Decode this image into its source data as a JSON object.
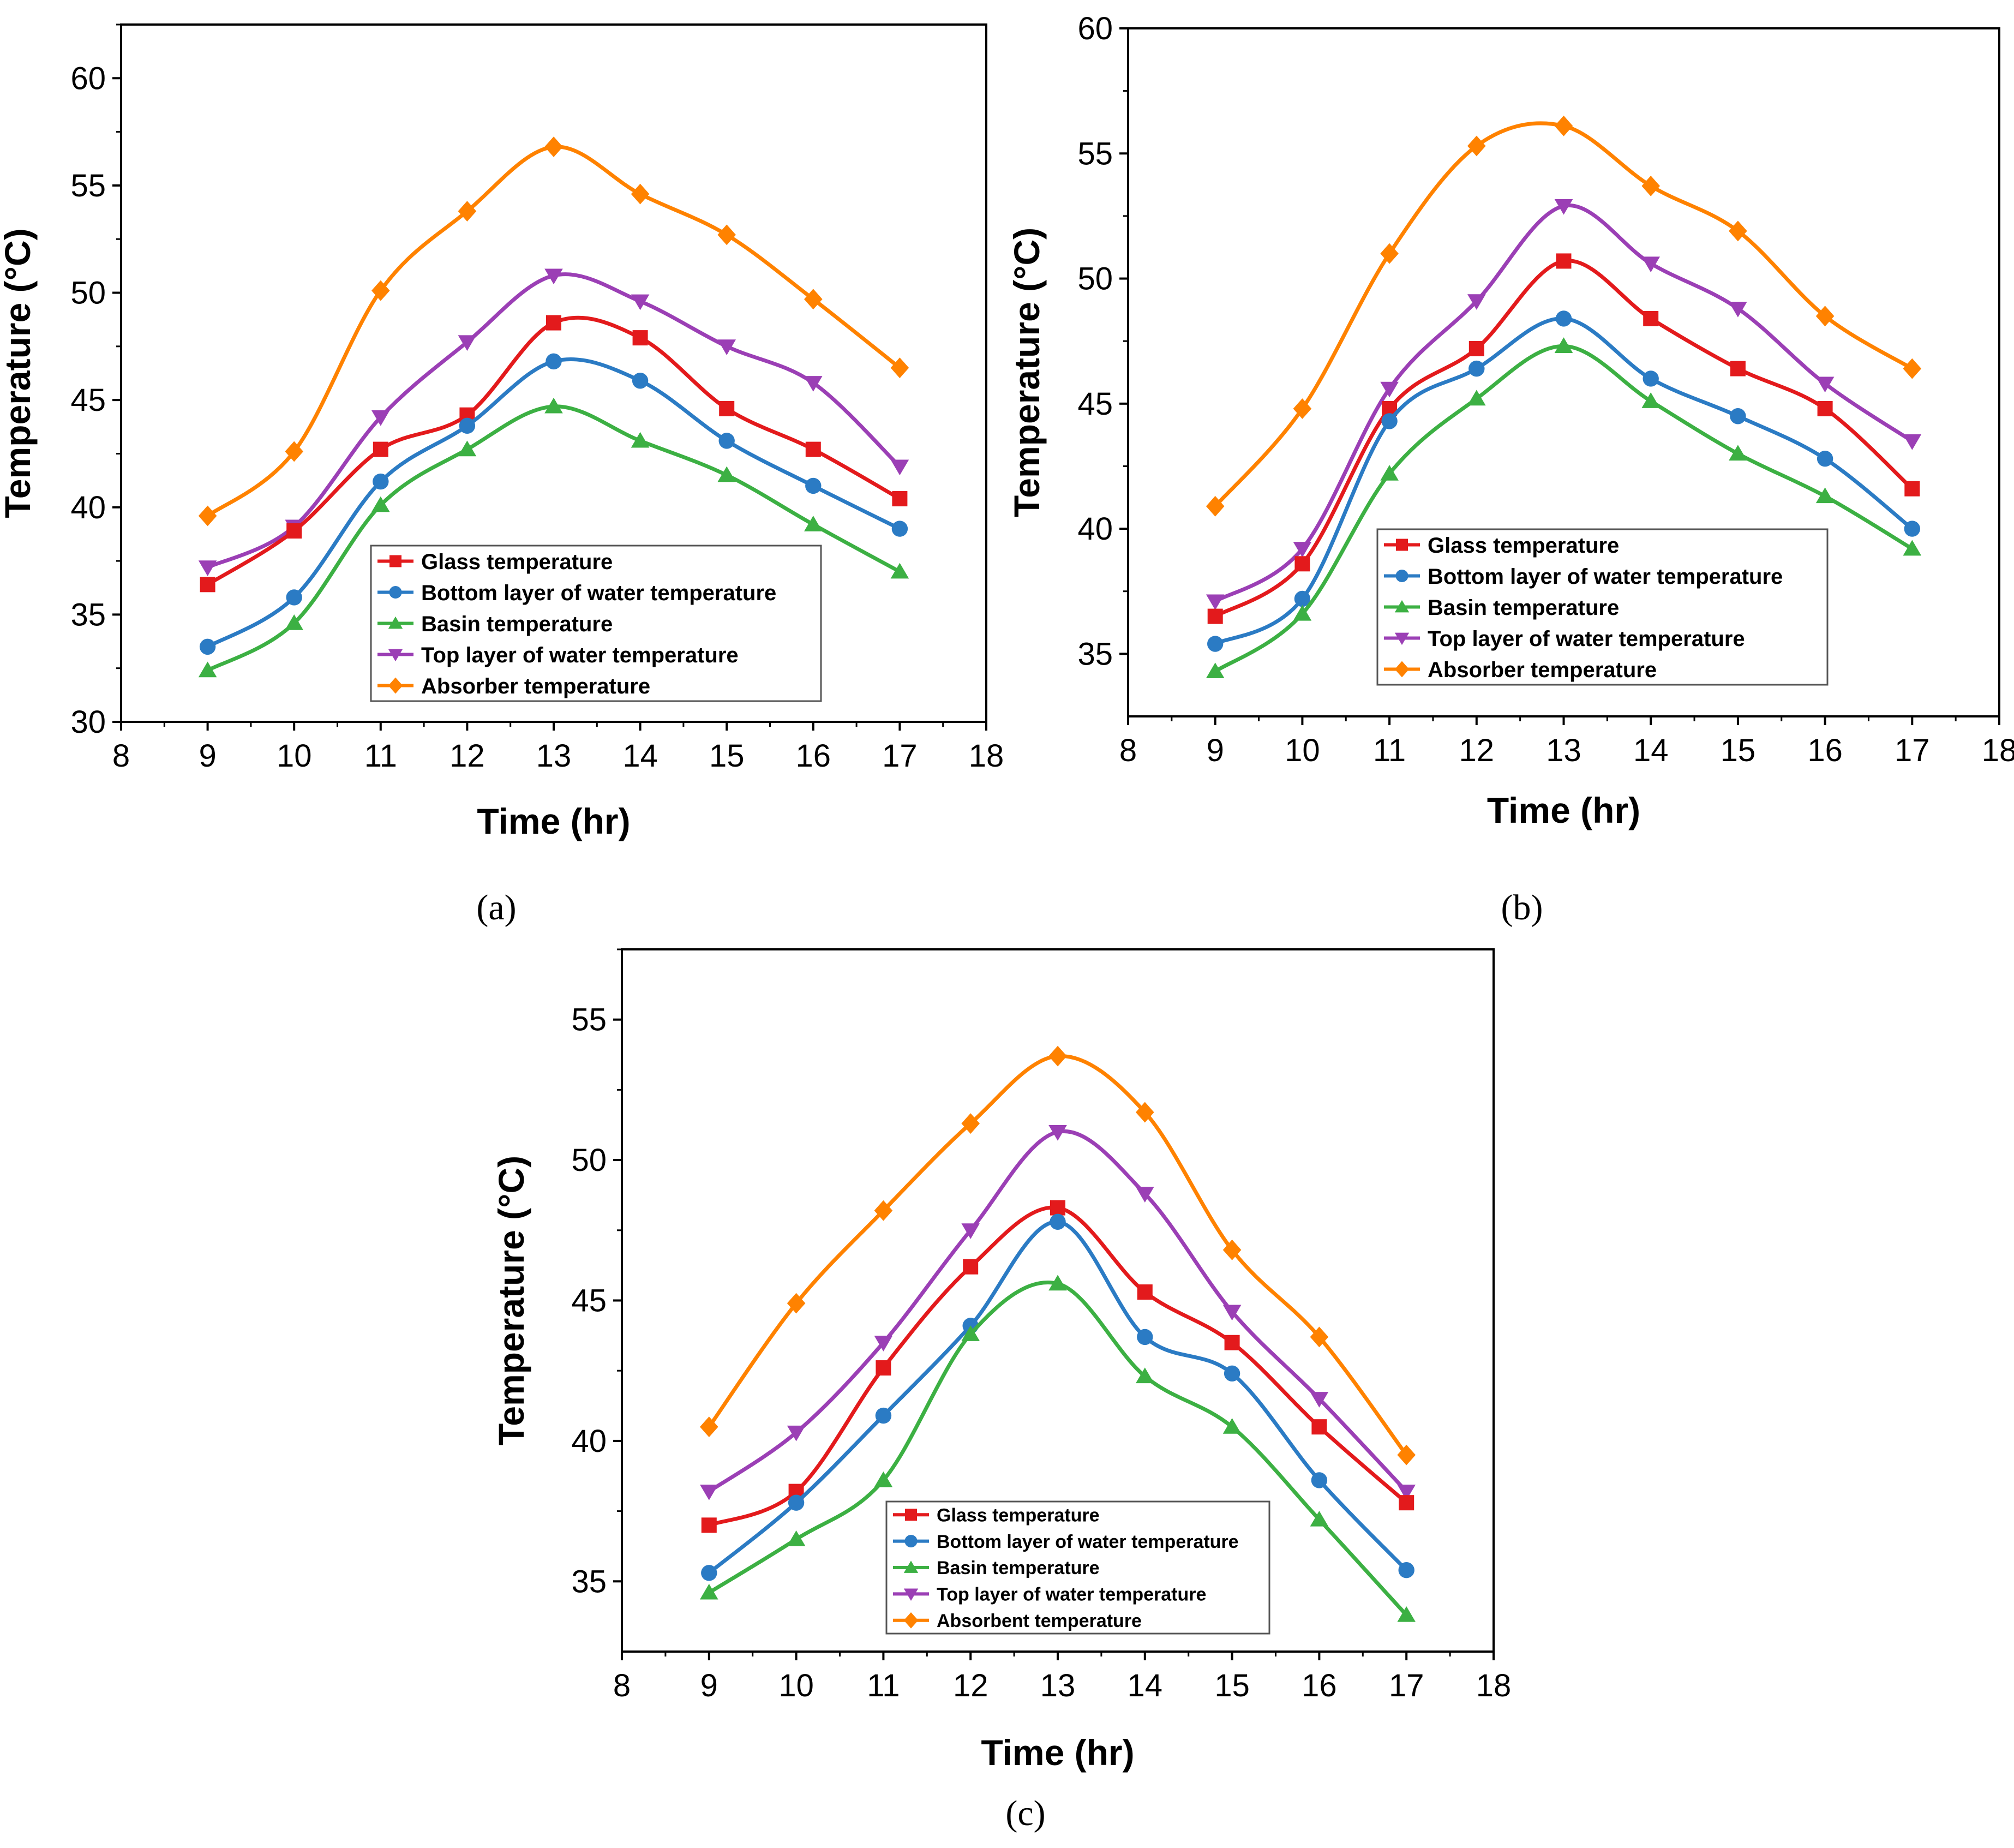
{
  "series_styles": [
    {
      "color": "#e31a1c",
      "marker": "square"
    },
    {
      "color": "#2b7bc4",
      "marker": "circle"
    },
    {
      "color": "#3cb043",
      "marker": "triangle-up"
    },
    {
      "color": "#9b3fb5",
      "marker": "triangle-down"
    },
    {
      "color": "#ff8200",
      "marker": "diamond"
    }
  ],
  "chart_data": [
    {
      "type": "line",
      "panel_label": "(a)",
      "xlabel": "Time (hr)",
      "ylabel": "Temperature (°C)",
      "xlim": [
        8,
        18
      ],
      "ylim": [
        30,
        62.5
      ],
      "xticks": [
        8,
        9,
        10,
        11,
        12,
        13,
        14,
        15,
        16,
        17,
        18
      ],
      "yticks": [
        30,
        35,
        40,
        45,
        50,
        55,
        60
      ],
      "legend_position": "lower-center",
      "x": [
        9,
        10,
        11,
        12,
        13,
        14,
        15,
        16,
        17
      ],
      "series": [
        {
          "name": "Glass temperature",
          "values": [
            36.4,
            38.9,
            42.7,
            44.3,
            48.6,
            47.9,
            44.6,
            42.7,
            40.4
          ]
        },
        {
          "name": "Bottom layer of water temperature",
          "values": [
            33.5,
            35.8,
            41.2,
            43.8,
            46.8,
            45.9,
            43.1,
            41.0,
            39.0
          ]
        },
        {
          "name": "Basin temperature",
          "values": [
            32.4,
            34.6,
            40.1,
            42.7,
            44.7,
            43.1,
            41.5,
            39.2,
            37.0
          ]
        },
        {
          "name": "Top layer of water temperature",
          "values": [
            37.2,
            39.1,
            44.2,
            47.7,
            50.8,
            49.6,
            47.5,
            45.8,
            41.9
          ]
        },
        {
          "name": "Absorber temperature",
          "values": [
            39.6,
            42.6,
            50.1,
            53.8,
            56.8,
            54.6,
            52.7,
            49.7,
            46.5
          ]
        }
      ]
    },
    {
      "type": "line",
      "panel_label": "(b)",
      "xlabel": "Time (hr)",
      "ylabel": "Temperature (°C)",
      "xlim": [
        8,
        18
      ],
      "ylim": [
        32.5,
        60
      ],
      "xticks": [
        8,
        9,
        10,
        11,
        12,
        13,
        14,
        15,
        16,
        17,
        18
      ],
      "yticks": [
        35,
        40,
        45,
        50,
        55,
        60
      ],
      "legend_position": "lower-center",
      "x": [
        9,
        10,
        11,
        12,
        13,
        14,
        15,
        16,
        17
      ],
      "series": [
        {
          "name": "Glass temperature",
          "values": [
            36.5,
            38.6,
            44.8,
            47.2,
            50.7,
            48.4,
            46.4,
            44.8,
            41.6
          ]
        },
        {
          "name": "Bottom layer of water temperature",
          "values": [
            35.4,
            37.2,
            44.3,
            46.4,
            48.4,
            46.0,
            44.5,
            42.8,
            40.0
          ]
        },
        {
          "name": "Basin temperature",
          "values": [
            34.3,
            36.6,
            42.2,
            45.2,
            47.3,
            45.1,
            43.0,
            41.3,
            39.2
          ]
        },
        {
          "name": "Top layer of water temperature",
          "values": [
            37.1,
            39.2,
            45.6,
            49.1,
            52.9,
            50.6,
            48.8,
            45.8,
            43.5
          ]
        },
        {
          "name": "Absorber temperature",
          "values": [
            40.9,
            44.8,
            51.0,
            55.3,
            56.1,
            53.7,
            51.9,
            48.5,
            46.4
          ]
        }
      ]
    },
    {
      "type": "line",
      "panel_label": "(c)",
      "xlabel": "Time (hr)",
      "ylabel": "Temperature (°C)",
      "xlim": [
        8,
        18
      ],
      "ylim": [
        32.5,
        57.5
      ],
      "xticks": [
        8,
        9,
        10,
        11,
        12,
        13,
        14,
        15,
        16,
        17,
        18
      ],
      "yticks": [
        35,
        40,
        45,
        50,
        55
      ],
      "legend_position": "lower-center",
      "x": [
        9,
        10,
        11,
        12,
        13,
        14,
        15,
        16,
        17
      ],
      "series": [
        {
          "name": "Glass temperature",
          "values": [
            37.0,
            38.2,
            42.6,
            46.2,
            48.3,
            45.3,
            43.5,
            40.5,
            37.8
          ]
        },
        {
          "name": "Bottom layer of water temperature",
          "values": [
            35.3,
            37.8,
            40.9,
            44.1,
            47.8,
            43.7,
            42.4,
            38.6,
            35.4
          ]
        },
        {
          "name": "Basin temperature",
          "values": [
            34.6,
            36.5,
            38.6,
            43.8,
            45.6,
            42.3,
            40.5,
            37.2,
            33.8
          ]
        },
        {
          "name": "Top layer of water temperature",
          "values": [
            38.2,
            40.3,
            43.5,
            47.5,
            51.0,
            48.8,
            44.6,
            41.5,
            38.2
          ]
        },
        {
          "name": "Absorbent temperature",
          "values": [
            40.5,
            44.9,
            48.2,
            51.3,
            53.7,
            51.7,
            46.8,
            43.7,
            39.5
          ]
        }
      ]
    }
  ]
}
